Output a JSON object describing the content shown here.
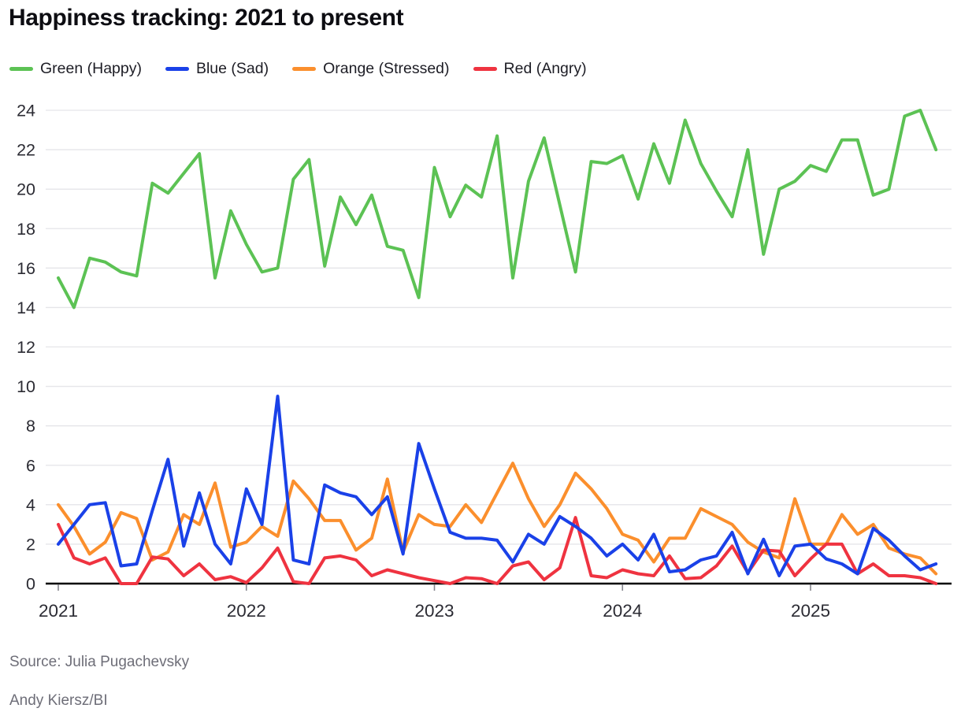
{
  "header": {
    "title": "Happiness tracking: 2021 to present"
  },
  "footer": {
    "source": "Source: Julia Pugachevsky",
    "credit": "Andy Kiersz/BI"
  },
  "chart_data": {
    "type": "line",
    "title": "Happiness tracking: 2021 to present",
    "x_unit": "month",
    "x_start": "2021-01",
    "x_end": "2025-09",
    "x_tick_labels": [
      "2021",
      "2022",
      "2023",
      "2024",
      "2025"
    ],
    "ylim": [
      0,
      24
    ],
    "yticks": [
      0,
      2,
      4,
      6,
      8,
      10,
      12,
      14,
      16,
      18,
      20,
      22,
      24
    ],
    "grid": true,
    "legend_position": "top-left",
    "axis_color": "#000000",
    "gridline_color": "#e5e5e9",
    "tick_color": "#85858d",
    "series": [
      {
        "name": "Green (Happy)",
        "color": "#5cc254",
        "values": [
          15.5,
          14.0,
          16.5,
          16.3,
          15.8,
          15.6,
          20.3,
          19.8,
          20.8,
          21.8,
          15.5,
          18.9,
          17.2,
          15.8,
          16.0,
          20.5,
          21.5,
          16.1,
          19.6,
          18.2,
          19.7,
          17.1,
          16.9,
          14.5,
          21.1,
          18.6,
          20.2,
          19.6,
          22.7,
          15.5,
          20.4,
          22.6,
          19.2,
          15.8,
          21.4,
          21.3,
          21.7,
          19.5,
          22.3,
          20.3,
          23.5,
          21.3,
          19.9,
          18.6,
          22.0,
          16.7,
          20.0,
          20.4,
          21.2,
          20.9,
          22.5,
          22.5,
          19.7,
          20.0,
          23.7,
          24.0,
          22.0
        ]
      },
      {
        "name": "Blue (Sad)",
        "color": "#1a41e8",
        "values": [
          2.0,
          3.0,
          4.0,
          4.1,
          0.9,
          1.0,
          3.7,
          6.3,
          1.9,
          4.6,
          2.0,
          1.0,
          4.8,
          3.0,
          9.5,
          1.2,
          1.0,
          5.0,
          4.6,
          4.4,
          3.5,
          4.4,
          1.5,
          7.1,
          4.8,
          2.6,
          2.3,
          2.3,
          2.2,
          1.1,
          2.5,
          2.0,
          3.4,
          2.9,
          2.3,
          1.4,
          2.0,
          1.2,
          2.5,
          0.6,
          0.7,
          1.2,
          1.4,
          2.6,
          0.5,
          2.25,
          0.4,
          1.9,
          2.0,
          1.25,
          1.0,
          0.5,
          2.8,
          2.2,
          1.4,
          0.7,
          1.0
        ]
      },
      {
        "name": "Orange (Stressed)",
        "color": "#fb8f2d",
        "values": [
          4.0,
          2.9,
          1.5,
          2.1,
          3.6,
          3.3,
          1.2,
          1.6,
          3.5,
          3.0,
          5.1,
          1.85,
          2.1,
          2.9,
          2.4,
          5.2,
          4.3,
          3.2,
          3.2,
          1.7,
          2.3,
          5.3,
          1.6,
          3.5,
          3.0,
          2.9,
          4.0,
          3.1,
          4.6,
          6.1,
          4.3,
          2.9,
          4.0,
          5.6,
          4.8,
          3.8,
          2.5,
          2.2,
          1.1,
          2.3,
          2.3,
          3.8,
          3.4,
          3.0,
          2.1,
          1.6,
          1.3,
          4.3,
          2.0,
          2.0,
          3.5,
          2.5,
          3.0,
          1.8,
          1.5,
          1.3,
          0.5
        ]
      },
      {
        "name": "Red (Angry)",
        "color": "#ef3340",
        "values": [
          3.0,
          1.3,
          1.0,
          1.3,
          0.0,
          0.0,
          1.35,
          1.25,
          0.4,
          1.0,
          0.2,
          0.35,
          0.05,
          0.8,
          1.8,
          0.1,
          0.0,
          1.3,
          1.4,
          1.2,
          0.4,
          0.7,
          0.5,
          0.3,
          0.15,
          0.0,
          0.3,
          0.25,
          0.0,
          0.9,
          1.1,
          0.2,
          0.8,
          3.35,
          0.4,
          0.3,
          0.7,
          0.5,
          0.4,
          1.4,
          0.25,
          0.3,
          0.9,
          1.9,
          0.55,
          1.7,
          1.65,
          0.4,
          1.25,
          2.0,
          2.0,
          0.5,
          1.0,
          0.4,
          0.4,
          0.3,
          0.0
        ]
      }
    ]
  }
}
